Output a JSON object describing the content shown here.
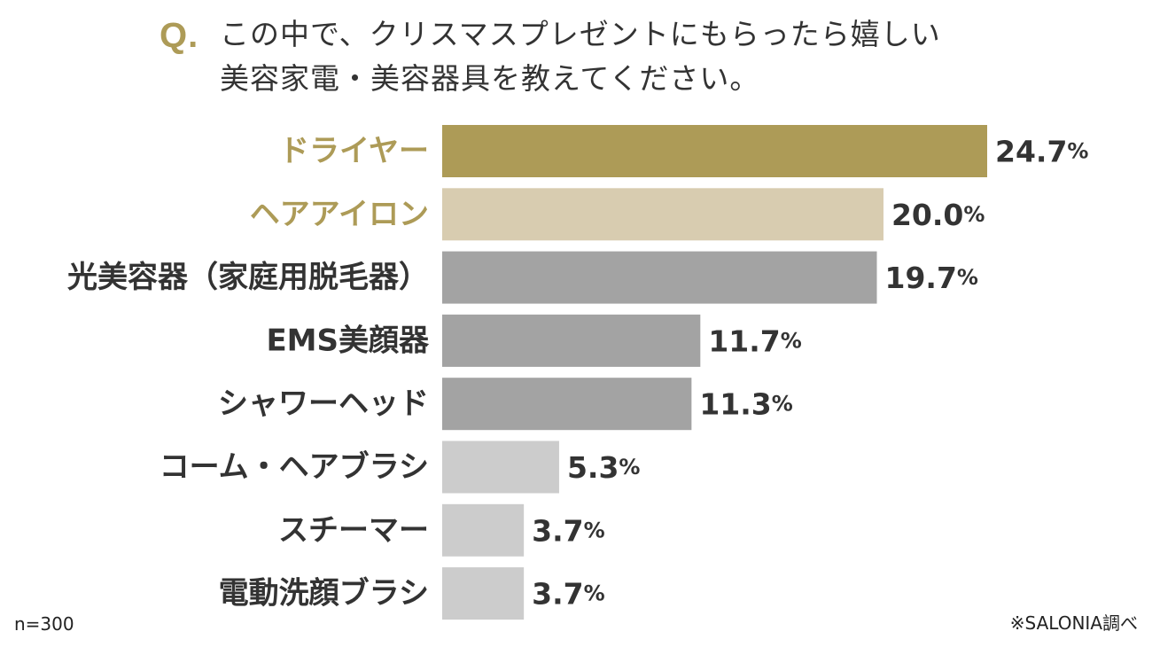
{
  "question": {
    "mark": "Q.",
    "line1": "この中で、クリスマスプレゼントにもらったら嬉しい",
    "line2": "美容家電・美容器具を教えてください。"
  },
  "colors": {
    "accent": "#ad9b57",
    "accent_light": "#d8ccb0",
    "mid_gray": "#a3a3a3",
    "light_gray": "#cccccc",
    "text": "#333333"
  },
  "chart_data": {
    "type": "bar",
    "orientation": "horizontal",
    "title": "この中で、クリスマスプレゼントにもらったら嬉しい美容家電・美容器具を教えてください。",
    "categories": [
      "ドライヤー",
      "ヘアアイロン",
      "光美容器（家庭用脱毛器）",
      "EMS美顔器",
      "シャワーヘッド",
      "コーム・ヘアブラシ",
      "スチーマー",
      "電動洗顔ブラシ"
    ],
    "values": [
      24.7,
      20.0,
      19.7,
      11.7,
      11.3,
      5.3,
      3.7,
      3.7
    ],
    "value_labels": [
      "24.7",
      "20.0",
      "19.7",
      "11.7",
      "11.3",
      "5.3",
      "3.7",
      "3.7"
    ],
    "unit": "%",
    "bar_colors": [
      "#ad9b57",
      "#d8ccb0",
      "#a3a3a3",
      "#a3a3a3",
      "#a3a3a3",
      "#cccccc",
      "#cccccc",
      "#cccccc"
    ],
    "label_colors": [
      "#ad9b57",
      "#ad9b57",
      "#333333",
      "#333333",
      "#333333",
      "#333333",
      "#333333",
      "#333333"
    ],
    "xlim": [
      0,
      24.7
    ],
    "grid": false,
    "legend": "none",
    "xlabel": "",
    "ylabel": ""
  },
  "footer": {
    "sample_size": "n=300",
    "source": "※SALONIA調べ"
  }
}
